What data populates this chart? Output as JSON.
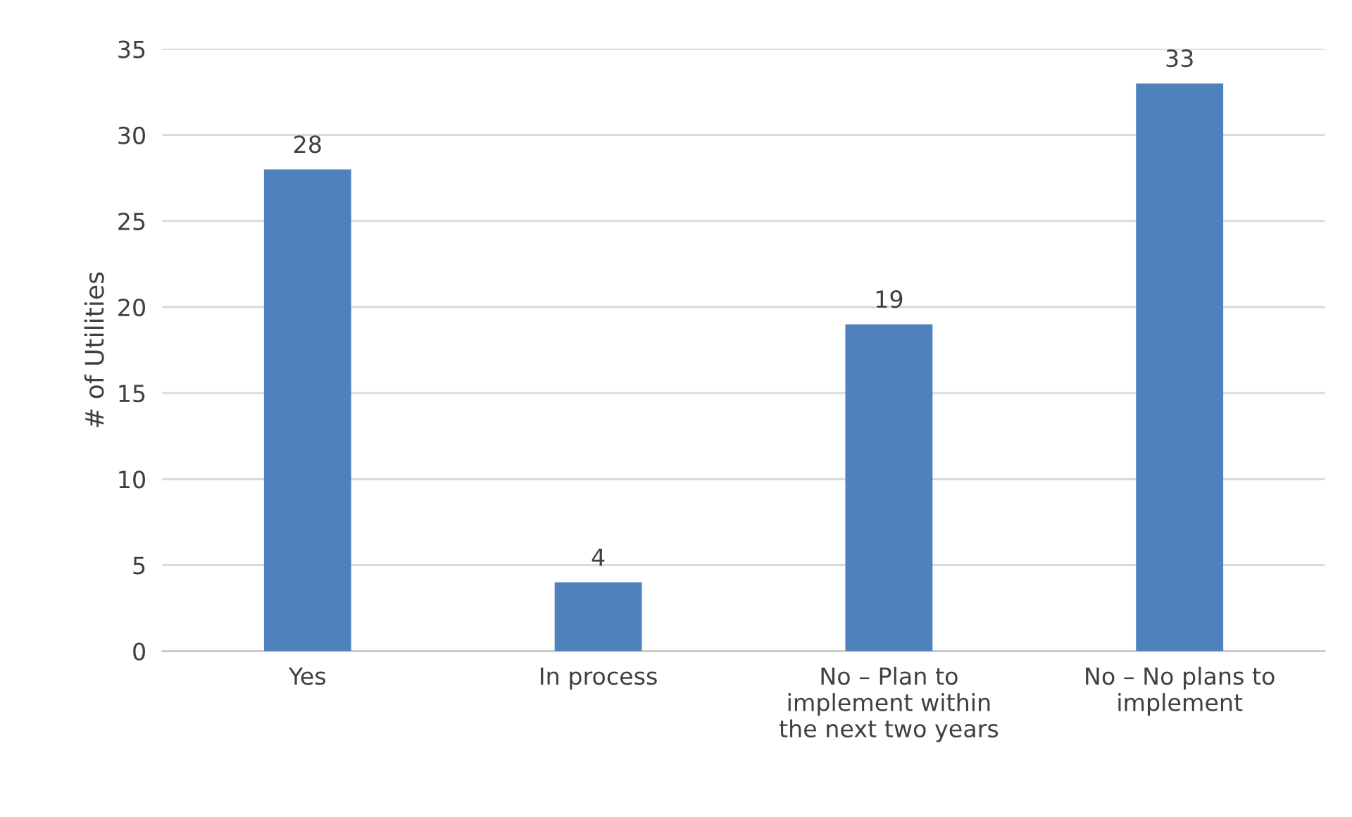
{
  "chart_data": {
    "type": "bar",
    "ylabel": "# of Utilities",
    "categories": [
      "Yes",
      "In process",
      "No – Plan to\nimplement within\nthe next two years",
      "No – No plans to\nimplement"
    ],
    "values": [
      28,
      4,
      19,
      33
    ],
    "color": "#4f81bd",
    "ylim": [
      0,
      35
    ],
    "yticks": [
      0,
      5,
      10,
      15,
      20,
      25,
      30,
      35
    ],
    "grid": "y",
    "data_labels": true
  }
}
